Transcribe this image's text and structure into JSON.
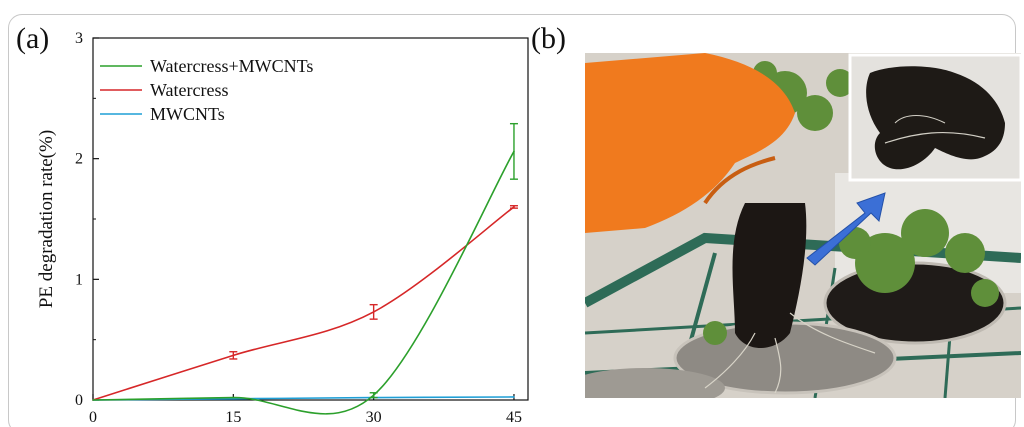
{
  "panels": {
    "a": "(a)",
    "b": "(b)"
  },
  "chart_data": {
    "type": "line",
    "title": "",
    "xlabel": "",
    "ylabel": "PE degradation rate(%)",
    "xlim": [
      0,
      46.5
    ],
    "ylim": [
      0,
      3
    ],
    "xticks": [
      0,
      15,
      30,
      45
    ],
    "yticks": [
      0,
      1,
      2,
      3
    ],
    "grid": false,
    "legend_position": "top-left",
    "series": [
      {
        "name": "Watercress+MWCNTs",
        "color": "#2ca02c",
        "x": [
          0,
          15,
          30,
          45
        ],
        "values": [
          0,
          0.02,
          0.04,
          2.06
        ],
        "error": [
          0,
          0,
          0.02,
          0.23
        ]
      },
      {
        "name": "Watercress",
        "color": "#d62728",
        "x": [
          0,
          15,
          30,
          45
        ],
        "values": [
          0,
          0.37,
          0.73,
          1.6
        ],
        "error": [
          0,
          0.03,
          0.06,
          0.01
        ]
      },
      {
        "name": "MWCNTs",
        "color": "#1f9fd6",
        "x": [
          0,
          15,
          30,
          45
        ],
        "values": [
          0,
          0.01,
          0.02,
          0.025
        ],
        "error": [
          0,
          0,
          0,
          0
        ]
      }
    ]
  },
  "photo": {
    "description_icon": "plant-root-photo",
    "arrow_color": "#3b6fd6",
    "glove_color": "#f07a1e",
    "frame_color": "#2e6b57"
  }
}
